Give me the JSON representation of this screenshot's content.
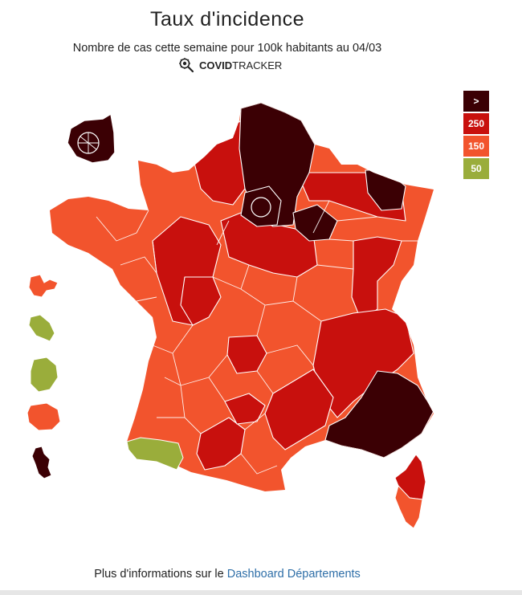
{
  "title": "Taux d'incidence",
  "subtitle": "Nombre de cas cette semaine pour 100k habitants au 04/03",
  "brand": {
    "bold": "COVID",
    "regular": "TRACKER",
    "icon": "virus-magnifier-icon"
  },
  "legend": [
    {
      "label": ">",
      "color": "#3b0004"
    },
    {
      "label": "250",
      "color": "#c8100d"
    },
    {
      "label": "150",
      "color": "#f2542d"
    },
    {
      "label": "50",
      "color": "#9aad3b"
    }
  ],
  "footer": {
    "text": "Plus d'informations sur le",
    "link": "Dashboard Départements"
  },
  "colors": {
    "very_high": "#3b0004",
    "high": "#c8100d",
    "medium": "#f2542d",
    "low": "#9aad3b",
    "border": "#ffffff"
  }
}
